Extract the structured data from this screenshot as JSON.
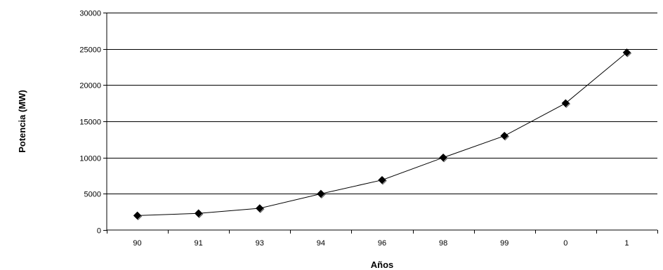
{
  "chart_data": {
    "type": "line",
    "title": "",
    "xlabel": "Años",
    "ylabel": "Potencia (MW)",
    "categories": [
      "90",
      "91",
      "93",
      "94",
      "96",
      "98",
      "99",
      "0",
      "1"
    ],
    "series": [
      {
        "values": [
          2000,
          2300,
          3000,
          5000,
          6900,
          10000,
          13000,
          17500,
          24500
        ]
      }
    ],
    "ylim": [
      0,
      30000
    ],
    "yticks": [
      "0",
      "5000",
      "10000",
      "15000",
      "20000",
      "25000",
      "30000"
    ],
    "grid": "horizontal",
    "legend": "none",
    "marker": "diamond",
    "colors": {
      "line": "#000000",
      "marker": "#000000",
      "grid": "#000000"
    }
  }
}
